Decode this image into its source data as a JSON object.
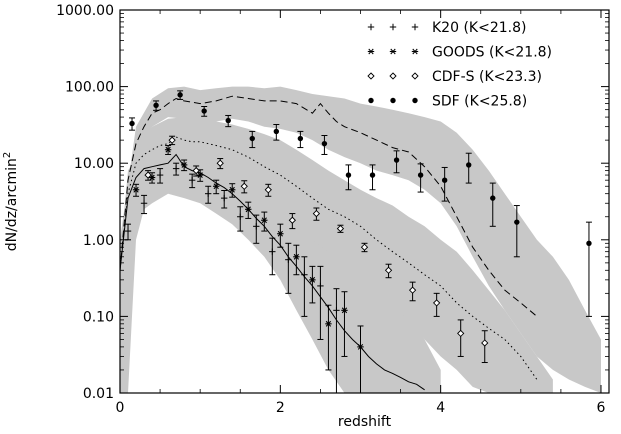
{
  "chart_data": {
    "type": "scatter",
    "title": "",
    "xlabel": "redshift",
    "ylabel": "dN/dz/arcmin",
    "ylabel_superscript": "2",
    "xlim": [
      0,
      6.1
    ],
    "ylim": [
      0.01,
      1000
    ],
    "yscale": "log",
    "x_ticks": [
      "0",
      "2",
      "4",
      "6"
    ],
    "y_ticks": [
      "0.01",
      "0.10",
      "1.00",
      "10.00",
      "100.00",
      "1000.00"
    ],
    "y_tick_values": [
      0.01,
      0.1,
      1,
      10,
      100,
      1000
    ],
    "x_tick_values": [
      0,
      2,
      4,
      6
    ],
    "legend_position": "top-right",
    "grid": false,
    "series": [
      {
        "name": "K20 (K<21.8)",
        "marker": "plus",
        "x": [
          0.1,
          0.3,
          0.5,
          0.7,
          0.9,
          1.1,
          1.3,
          1.5,
          1.7,
          1.9,
          2.1,
          2.3,
          2.5,
          2.7
        ],
        "y": [
          1.3,
          3.0,
          7.0,
          8.5,
          6.0,
          4.0,
          3.5,
          2.0,
          1.5,
          0.7,
          0.55,
          0.35,
          0.25,
          0.12
        ],
        "err_lo": [
          0.3,
          0.8,
          1.5,
          1.5,
          1.2,
          1.0,
          0.9,
          0.7,
          0.6,
          0.35,
          0.35,
          0.25,
          0.2,
          0.11
        ],
        "err_hi": [
          0.3,
          0.8,
          1.5,
          1.5,
          1.2,
          1.0,
          0.9,
          0.7,
          0.6,
          0.35,
          0.35,
          0.25,
          0.2,
          0.11
        ]
      },
      {
        "name": "GOODS (K<21.8)",
        "marker": "asterisk",
        "x": [
          0.2,
          0.4,
          0.6,
          0.8,
          1.0,
          1.2,
          1.4,
          1.6,
          1.8,
          2.0,
          2.2,
          2.4,
          2.6,
          2.8,
          3.0
        ],
        "y": [
          4.5,
          6.5,
          15.0,
          9.5,
          7.0,
          5.0,
          4.5,
          2.5,
          1.8,
          1.2,
          0.6,
          0.3,
          0.08,
          0.12,
          0.04
        ],
        "err_lo": [
          0.8,
          1.0,
          2.0,
          1.5,
          1.2,
          1.0,
          0.9,
          0.6,
          0.5,
          0.4,
          0.25,
          0.15,
          0.06,
          0.09,
          0.035
        ],
        "err_hi": [
          0.8,
          1.0,
          2.0,
          1.5,
          1.2,
          1.0,
          0.9,
          0.6,
          0.5,
          0.4,
          0.25,
          0.15,
          0.06,
          0.09,
          0.035
        ]
      },
      {
        "name": "CDF-S (K<23.3)",
        "marker": "diamond",
        "x": [
          0.35,
          0.65,
          0.95,
          1.25,
          1.55,
          1.85,
          2.15,
          2.45,
          2.75,
          3.05,
          3.35,
          3.65,
          3.95,
          4.25,
          4.55
        ],
        "y": [
          7.0,
          20.0,
          8.0,
          10.0,
          5.0,
          4.5,
          1.8,
          2.2,
          1.4,
          0.8,
          0.4,
          0.22,
          0.15,
          0.06,
          0.045
        ],
        "err_lo": [
          1.0,
          2.5,
          1.2,
          1.5,
          0.9,
          0.8,
          0.4,
          0.4,
          0.15,
          0.1,
          0.08,
          0.06,
          0.05,
          0.03,
          0.02
        ],
        "err_hi": [
          1.0,
          2.5,
          1.2,
          1.5,
          0.9,
          0.8,
          0.4,
          0.4,
          0.15,
          0.1,
          0.08,
          0.06,
          0.05,
          0.03,
          0.02
        ]
      },
      {
        "name": "SDF (K<25.8)",
        "marker": "dot",
        "x": [
          0.15,
          0.45,
          0.75,
          1.05,
          1.35,
          1.65,
          1.95,
          2.25,
          2.55,
          2.85,
          3.15,
          3.45,
          3.75,
          4.05,
          4.35,
          4.65,
          4.95,
          5.85
        ],
        "y": [
          33.0,
          57.0,
          78.0,
          48.0,
          36.0,
          21.0,
          26.0,
          21.0,
          18.0,
          7.0,
          7.0,
          11.0,
          7.0,
          6.0,
          9.5,
          3.5,
          1.7,
          0.9
        ],
        "err_lo": [
          6.0,
          8.0,
          10.0,
          7.0,
          6.0,
          5.0,
          6.0,
          5.0,
          5.0,
          2.5,
          2.5,
          3.5,
          2.8,
          2.8,
          4.0,
          2.0,
          1.1,
          0.8
        ],
        "err_hi": [
          6.0,
          8.0,
          10.0,
          7.0,
          6.0,
          5.0,
          6.0,
          5.0,
          5.0,
          2.5,
          2.5,
          3.5,
          2.8,
          2.8,
          4.0,
          2.0,
          1.1,
          0.8
        ]
      }
    ],
    "model_lines": [
      {
        "style": "solid",
        "x": [
          0.0,
          0.1,
          0.2,
          0.3,
          0.4,
          0.5,
          0.6,
          0.7,
          0.8,
          0.9,
          1.0,
          1.1,
          1.2,
          1.3,
          1.4,
          1.5,
          1.6,
          1.7,
          1.8,
          1.9,
          2.0,
          2.1,
          2.2,
          2.3,
          2.4,
          2.5,
          2.6,
          2.7,
          2.8,
          2.9,
          3.0,
          3.1,
          3.2,
          3.3,
          3.4,
          3.5,
          3.6,
          3.7,
          3.8
        ],
        "y": [
          0.4,
          3.5,
          6.5,
          8.5,
          9.0,
          9.5,
          10.0,
          13.0,
          9.0,
          8.0,
          7.5,
          6.5,
          5.5,
          4.8,
          4.0,
          3.2,
          2.5,
          1.9,
          1.5,
          1.1,
          0.85,
          0.6,
          0.45,
          0.33,
          0.25,
          0.18,
          0.13,
          0.09,
          0.065,
          0.05,
          0.04,
          0.03,
          0.024,
          0.02,
          0.018,
          0.016,
          0.014,
          0.013,
          0.011
        ]
      },
      {
        "style": "dotted",
        "x": [
          0.0,
          0.1,
          0.2,
          0.3,
          0.4,
          0.5,
          0.6,
          0.7,
          0.8,
          0.9,
          1.0,
          1.2,
          1.4,
          1.6,
          1.8,
          2.0,
          2.2,
          2.4,
          2.6,
          2.8,
          3.0,
          3.2,
          3.4,
          3.6,
          3.8,
          4.0,
          4.2,
          4.4,
          4.6,
          4.8,
          5.0,
          5.2
        ],
        "y": [
          0.4,
          4.0,
          10.0,
          13.0,
          15.0,
          17.0,
          18.0,
          22.0,
          20.0,
          19.0,
          19.0,
          17.0,
          15.0,
          12.0,
          9.0,
          7.0,
          5.0,
          3.5,
          2.5,
          2.0,
          1.5,
          1.0,
          0.7,
          0.5,
          0.35,
          0.25,
          0.15,
          0.1,
          0.07,
          0.05,
          0.03,
          0.015
        ]
      },
      {
        "style": "dashed",
        "x": [
          0.0,
          0.1,
          0.2,
          0.3,
          0.4,
          0.5,
          0.6,
          0.7,
          0.8,
          1.0,
          1.2,
          1.4,
          1.6,
          1.8,
          2.0,
          2.2,
          2.4,
          2.5,
          2.6,
          2.7,
          2.8,
          3.0,
          3.2,
          3.4,
          3.6,
          3.8,
          4.0,
          4.2,
          4.4,
          4.6,
          4.8,
          5.0,
          5.2
        ],
        "y": [
          0.4,
          6.0,
          18.0,
          30.0,
          45.0,
          50.0,
          60.0,
          70.0,
          65.0,
          60.0,
          65.0,
          75.0,
          70.0,
          65.0,
          65.0,
          60.0,
          45.0,
          60.0,
          45.0,
          35.0,
          30.0,
          25.0,
          20.0,
          16.0,
          14.0,
          9.0,
          5.0,
          2.0,
          0.8,
          0.4,
          0.22,
          0.15,
          0.1
        ]
      }
    ],
    "bands": [
      {
        "x": [
          0.0,
          0.1,
          0.2,
          0.3,
          0.4,
          0.6,
          0.8,
          1.0,
          1.2,
          1.4,
          1.6,
          1.8,
          2.0,
          2.2,
          2.4,
          2.6,
          2.8,
          3.0,
          3.2,
          3.4,
          3.6,
          3.8,
          4.0
        ],
        "lo": [
          0.01,
          0.01,
          1.0,
          2.5,
          3.0,
          4.0,
          3.5,
          3.0,
          2.2,
          1.6,
          1.0,
          0.6,
          0.3,
          0.12,
          0.05,
          0.02,
          0.01,
          0.01,
          0.01,
          0.01,
          0.01,
          0.01,
          0.01
        ],
        "hi": [
          0.6,
          8.0,
          12.0,
          13.0,
          14.0,
          16.0,
          14.0,
          13.0,
          12.0,
          10.0,
          8.0,
          6.0,
          4.0,
          2.8,
          1.8,
          1.2,
          0.8,
          0.5,
          0.3,
          0.18,
          0.1,
          0.05,
          0.02
        ]
      },
      {
        "x": [
          0.0,
          0.2,
          0.4,
          0.6,
          0.8,
          1.0,
          1.2,
          1.4,
          1.6,
          1.8,
          2.0,
          2.2,
          2.4,
          2.6,
          2.8,
          3.0,
          3.2,
          3.4,
          3.6,
          3.8,
          4.0,
          4.2,
          4.4,
          4.6,
          4.8,
          5.0,
          5.2,
          5.4
        ],
        "lo": [
          0.01,
          4.0,
          7.0,
          8.0,
          8.0,
          7.0,
          6.0,
          5.0,
          4.0,
          3.0,
          2.0,
          1.4,
          1.0,
          0.7,
          0.5,
          0.35,
          0.22,
          0.14,
          0.09,
          0.05,
          0.03,
          0.02,
          0.012,
          0.01,
          0.01,
          0.01,
          0.01,
          0.01
        ],
        "hi": [
          0.6,
          15.0,
          30.0,
          38.0,
          40.0,
          38.0,
          35.0,
          32.0,
          28.0,
          24.0,
          20.0,
          15.0,
          11.0,
          8.0,
          6.0,
          4.5,
          3.5,
          2.8,
          2.0,
          1.5,
          1.0,
          0.7,
          0.4,
          0.22,
          0.12,
          0.06,
          0.03,
          0.015
        ]
      },
      {
        "x": [
          0.0,
          0.2,
          0.4,
          0.6,
          0.8,
          1.0,
          1.2,
          1.4,
          1.6,
          1.8,
          2.0,
          2.2,
          2.4,
          2.6,
          2.8,
          3.0,
          3.2,
          3.4,
          3.6,
          3.8,
          4.0,
          4.2,
          4.4,
          4.6,
          4.8,
          5.0,
          5.2,
          5.4,
          5.6,
          5.8,
          6.0
        ],
        "lo": [
          0.01,
          12.0,
          30.0,
          40.0,
          38.0,
          32.0,
          35.0,
          38.0,
          35.0,
          30.0,
          28.0,
          25.0,
          20.0,
          15.0,
          12.0,
          10.0,
          8.0,
          7.0,
          6.0,
          4.5,
          3.0,
          1.5,
          0.6,
          0.25,
          0.12,
          0.06,
          0.03,
          0.02,
          0.015,
          0.012,
          0.01
        ],
        "hi": [
          1.0,
          30.0,
          70.0,
          95.0,
          100.0,
          90.0,
          95.0,
          100.0,
          100.0,
          95.0,
          100.0,
          90.0,
          80.0,
          75.0,
          70.0,
          60.0,
          55.0,
          50.0,
          45.0,
          40.0,
          35.0,
          25.0,
          15.0,
          8.0,
          4.0,
          2.0,
          1.0,
          0.6,
          0.3,
          0.12,
          0.05
        ]
      }
    ]
  }
}
